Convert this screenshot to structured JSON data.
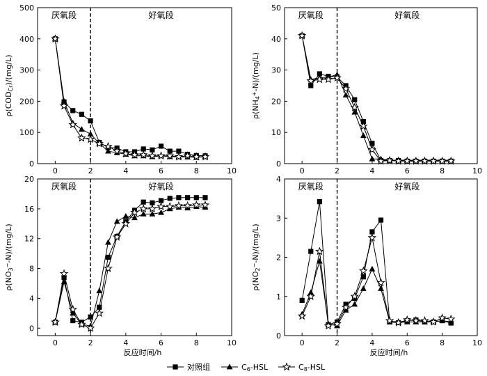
{
  "figure": {
    "xlabel": "反应时间/h",
    "phase_labels": {
      "anaerobic": "厌氧段",
      "aerobic": "好氧段"
    },
    "phase_boundary_h": 2,
    "legend": {
      "items": [
        {
          "label": "对照组",
          "marker": "square"
        },
        {
          "label": "C6-HSL",
          "marker": "triangle"
        },
        {
          "label": "C8-HSL",
          "marker": "star"
        }
      ]
    }
  },
  "chart_data": [
    {
      "type": "line",
      "ylabel": "ρ(CODCr)/(mg/L)",
      "xlim": [
        -1,
        10
      ],
      "ylim": [
        0,
        500
      ],
      "xticks": [
        0,
        2,
        4,
        6,
        8,
        10
      ],
      "yticks": [
        0,
        100,
        200,
        300,
        400,
        500
      ],
      "series": [
        {
          "name": "对照组",
          "marker": "square",
          "x": [
            0,
            0.5,
            1,
            1.5,
            2,
            2.5,
            3,
            3.5,
            4,
            4.5,
            5,
            5.5,
            6,
            6.5,
            7,
            7.5,
            8,
            8.5
          ],
          "y": [
            400,
            198,
            170,
            158,
            137,
            68,
            52,
            50,
            38,
            38,
            47,
            44,
            56,
            40,
            40,
            30,
            26,
            25
          ]
        },
        {
          "name": "C6-HSL",
          "marker": "triangle",
          "x": [
            0,
            0.5,
            1,
            1.5,
            2,
            2.5,
            3,
            3.5,
            4,
            4.5,
            5,
            5.5,
            6,
            6.5,
            7,
            7.5,
            8,
            8.5
          ],
          "y": [
            400,
            200,
            130,
            110,
            95,
            65,
            40,
            35,
            30,
            25,
            25,
            22,
            25,
            22,
            22,
            21,
            20,
            22
          ]
        },
        {
          "name": "C8-HSL",
          "marker": "star",
          "x": [
            0,
            0.5,
            1,
            1.5,
            2,
            2.5,
            3,
            3.5,
            4,
            4.5,
            5,
            5.5,
            6,
            6.5,
            7,
            7.5,
            8,
            8.5
          ],
          "y": [
            400,
            185,
            125,
            82,
            78,
            64,
            55,
            40,
            32,
            28,
            28,
            25,
            25,
            25,
            22,
            25,
            22,
            22
          ]
        }
      ]
    },
    {
      "type": "line",
      "ylabel": "ρ(NH4+-N)/(mg/L)",
      "xlim": [
        -1,
        10
      ],
      "ylim": [
        0,
        50
      ],
      "xticks": [
        0,
        2,
        4,
        6,
        8,
        10
      ],
      "yticks": [
        0,
        10,
        20,
        30,
        40,
        50
      ],
      "series": [
        {
          "name": "对照组",
          "marker": "square",
          "x": [
            0,
            0.5,
            1,
            1.5,
            2,
            2.5,
            3,
            3.5,
            4,
            4.5,
            5,
            5.5,
            6,
            6.5,
            7,
            7.5,
            8,
            8.5
          ],
          "y": [
            41,
            25,
            28.8,
            28,
            27.8,
            25,
            20.5,
            13.5,
            6.5,
            1,
            1,
            1,
            0.8,
            0.8,
            0.8,
            0.8,
            0.8,
            0.8
          ]
        },
        {
          "name": "C6-HSL",
          "marker": "triangle",
          "x": [
            0,
            0.5,
            1,
            1.5,
            2,
            2.5,
            3,
            3.5,
            4,
            4.5,
            5,
            5.5,
            6,
            6.5,
            7,
            7.5,
            8,
            8.5
          ],
          "y": [
            41,
            27,
            27.5,
            27.8,
            28.5,
            22,
            16.5,
            9,
            1.5,
            1.5,
            1,
            1,
            1,
            1,
            1,
            1,
            1,
            1
          ]
        },
        {
          "name": "C8-HSL",
          "marker": "star",
          "x": [
            0,
            0.5,
            1,
            1.5,
            2,
            2.5,
            3,
            3.5,
            4,
            4.5,
            5,
            5.5,
            6,
            6.5,
            7,
            7.5,
            8,
            8.5
          ],
          "y": [
            41,
            26.5,
            27,
            27,
            27.5,
            24,
            18,
            12,
            4.5,
            0.8,
            1,
            0.8,
            0.8,
            0.8,
            0.8,
            0.8,
            0.8,
            0.8
          ]
        }
      ]
    },
    {
      "type": "line",
      "ylabel": "ρ(NO3−-N)/(mg/L)",
      "xlim": [
        -1,
        10
      ],
      "ylim": [
        -1,
        20
      ],
      "xticks": [
        0,
        2,
        4,
        6,
        8,
        10
      ],
      "yticks": [
        0,
        4,
        8,
        12,
        16,
        20
      ],
      "series": [
        {
          "name": "对照组",
          "marker": "square",
          "x": [
            0,
            0.5,
            1,
            1.5,
            2,
            2.5,
            3,
            3.5,
            4,
            4.5,
            5,
            5.5,
            6,
            6.5,
            7,
            7.5,
            8,
            8.5
          ],
          "y": [
            0.8,
            6.8,
            1,
            0.8,
            1.5,
            2.8,
            9.5,
            12.3,
            14.3,
            15.8,
            16.9,
            16.8,
            17.1,
            17.4,
            17.5,
            17.5,
            17.5,
            17.5
          ]
        },
        {
          "name": "C6-HSL",
          "marker": "triangle",
          "x": [
            0,
            0.5,
            1,
            1.5,
            2,
            2.5,
            3,
            3.5,
            4,
            4.5,
            5,
            5.5,
            6,
            6.5,
            7,
            7.5,
            8,
            8.5
          ],
          "y": [
            0.8,
            6.2,
            2,
            0.5,
            0.3,
            5,
            11.5,
            14.3,
            15,
            14.8,
            15.3,
            15.3,
            15.5,
            16,
            16.2,
            16.1,
            16.3,
            16.2
          ]
        },
        {
          "name": "C8-HSL",
          "marker": "star",
          "x": [
            0,
            0.5,
            1,
            1.5,
            2,
            2.5,
            3,
            3.5,
            4,
            4.5,
            5,
            5.5,
            6,
            6.5,
            7,
            7.5,
            8,
            8.5
          ],
          "y": [
            0.8,
            7.3,
            2.5,
            0.5,
            0,
            2,
            8,
            12.2,
            14,
            15.5,
            16,
            16,
            16.3,
            16.3,
            16.4,
            16.4,
            16.5,
            16.5
          ]
        }
      ]
    },
    {
      "type": "line",
      "ylabel": "ρ(NO2−-N)/(mg/L)",
      "xlim": [
        -1,
        10
      ],
      "ylim": [
        0,
        4
      ],
      "xticks": [
        0,
        2,
        4,
        6,
        8,
        10
      ],
      "yticks": [
        0,
        1,
        2,
        3,
        4
      ],
      "series": [
        {
          "name": "对照组",
          "marker": "square",
          "x": [
            0,
            0.5,
            1,
            1.5,
            2,
            2.5,
            3,
            3.5,
            4,
            4.5,
            5,
            5.5,
            6,
            6.5,
            7,
            7.5,
            8,
            8.5
          ],
          "y": [
            0.9,
            2.15,
            3.42,
            0.28,
            0.35,
            0.8,
            0.95,
            1.5,
            2.65,
            2.95,
            0.35,
            0.33,
            0.38,
            0.4,
            0.35,
            0.35,
            0.38,
            0.32
          ]
        },
        {
          "name": "C6-HSL",
          "marker": "triangle",
          "x": [
            0,
            0.5,
            1,
            1.5,
            2,
            2.5,
            3,
            3.5,
            4,
            4.5,
            5,
            5.5,
            6,
            6.5,
            7,
            7.5,
            8,
            8.5
          ],
          "y": [
            0.55,
            1.1,
            1.9,
            0.3,
            0.25,
            0.65,
            0.8,
            1.2,
            1.7,
            1.2,
            0.35,
            0.33,
            0.35,
            0.35,
            0.35,
            0.35,
            0.38,
            0.35
          ]
        },
        {
          "name": "C8-HSL",
          "marker": "star",
          "x": [
            0,
            0.5,
            1,
            1.5,
            2,
            2.5,
            3,
            3.5,
            4,
            4.5,
            5,
            5.5,
            6,
            6.5,
            7,
            7.5,
            8,
            8.5
          ],
          "y": [
            0.5,
            1,
            2.15,
            0.25,
            0.3,
            0.72,
            1,
            1.65,
            2.5,
            1.35,
            0.38,
            0.33,
            0.4,
            0.38,
            0.38,
            0.35,
            0.45,
            0.42
          ]
        }
      ]
    }
  ]
}
